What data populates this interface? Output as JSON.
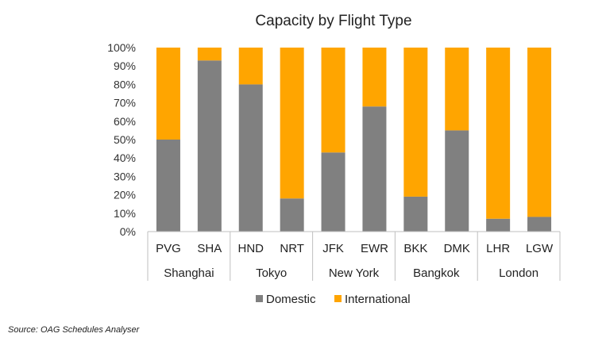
{
  "chart_data": {
    "type": "bar",
    "stacked": true,
    "title": "Capacity by Flight Type",
    "categories": [
      "PVG",
      "SHA",
      "HND",
      "NRT",
      "JFK",
      "EWR",
      "BKK",
      "DMK",
      "LHR",
      "LGW"
    ],
    "groups": [
      {
        "name": "Shanghai",
        "categories": [
          "PVG",
          "SHA"
        ]
      },
      {
        "name": "Tokyo",
        "categories": [
          "HND",
          "NRT"
        ]
      },
      {
        "name": "New York",
        "categories": [
          "JFK",
          "EWR"
        ]
      },
      {
        "name": "Bangkok",
        "categories": [
          "BKK",
          "DMK"
        ]
      },
      {
        "name": "London",
        "categories": [
          "LHR",
          "LGW"
        ]
      }
    ],
    "series": [
      {
        "name": "Domestic",
        "color": "#808080",
        "values": [
          50,
          93,
          80,
          18,
          43,
          68,
          19,
          55,
          7,
          8
        ]
      },
      {
        "name": "International",
        "color": "#FFA500",
        "values": [
          50,
          7,
          20,
          82,
          57,
          32,
          81,
          45,
          93,
          92
        ]
      }
    ],
    "yticks": [
      "0%",
      "10%",
      "20%",
      "30%",
      "40%",
      "50%",
      "60%",
      "70%",
      "80%",
      "90%",
      "100%"
    ],
    "ylim": [
      0,
      100
    ],
    "grid": false,
    "legend": "bottom"
  },
  "source": "Source: OAG Schedules Analyser"
}
